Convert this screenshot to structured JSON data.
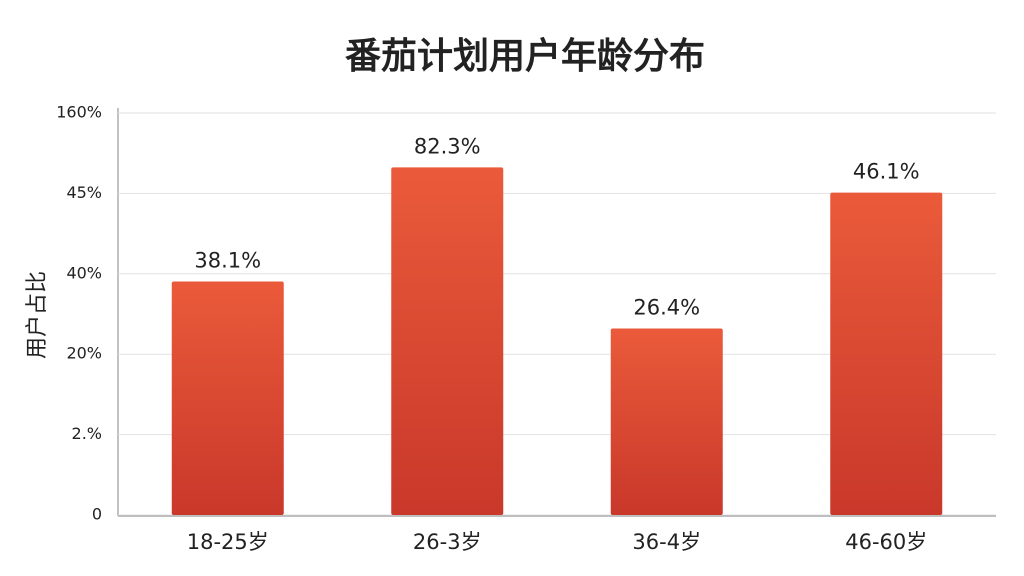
{
  "chart_data": {
    "type": "bar",
    "title": "番茄计划用户年龄分布",
    "y_label": "用户占比",
    "categories": [
      "18-25岁",
      "26-3岁",
      "36-4岁",
      "46-60岁"
    ],
    "values": [
      38.1,
      82.3,
      26.4,
      46.1
    ],
    "value_labels": [
      "38.1%",
      "82.3%",
      "26.4%",
      "46.1%"
    ],
    "color": "#d9452f",
    "ylim": [
      0,
      160
    ],
    "yticks": [
      0,
      {
        "value": 2,
        "label": "2.%"
      },
      {
        "value": 20,
        "label": "20%"
      },
      {
        "value": 40,
        "label": "40%"
      },
      {
        "value": 45,
        "label": "45%"
      },
      {
        "value": 160,
        "label": "160%"
      }
    ],
    "grid": true
  }
}
